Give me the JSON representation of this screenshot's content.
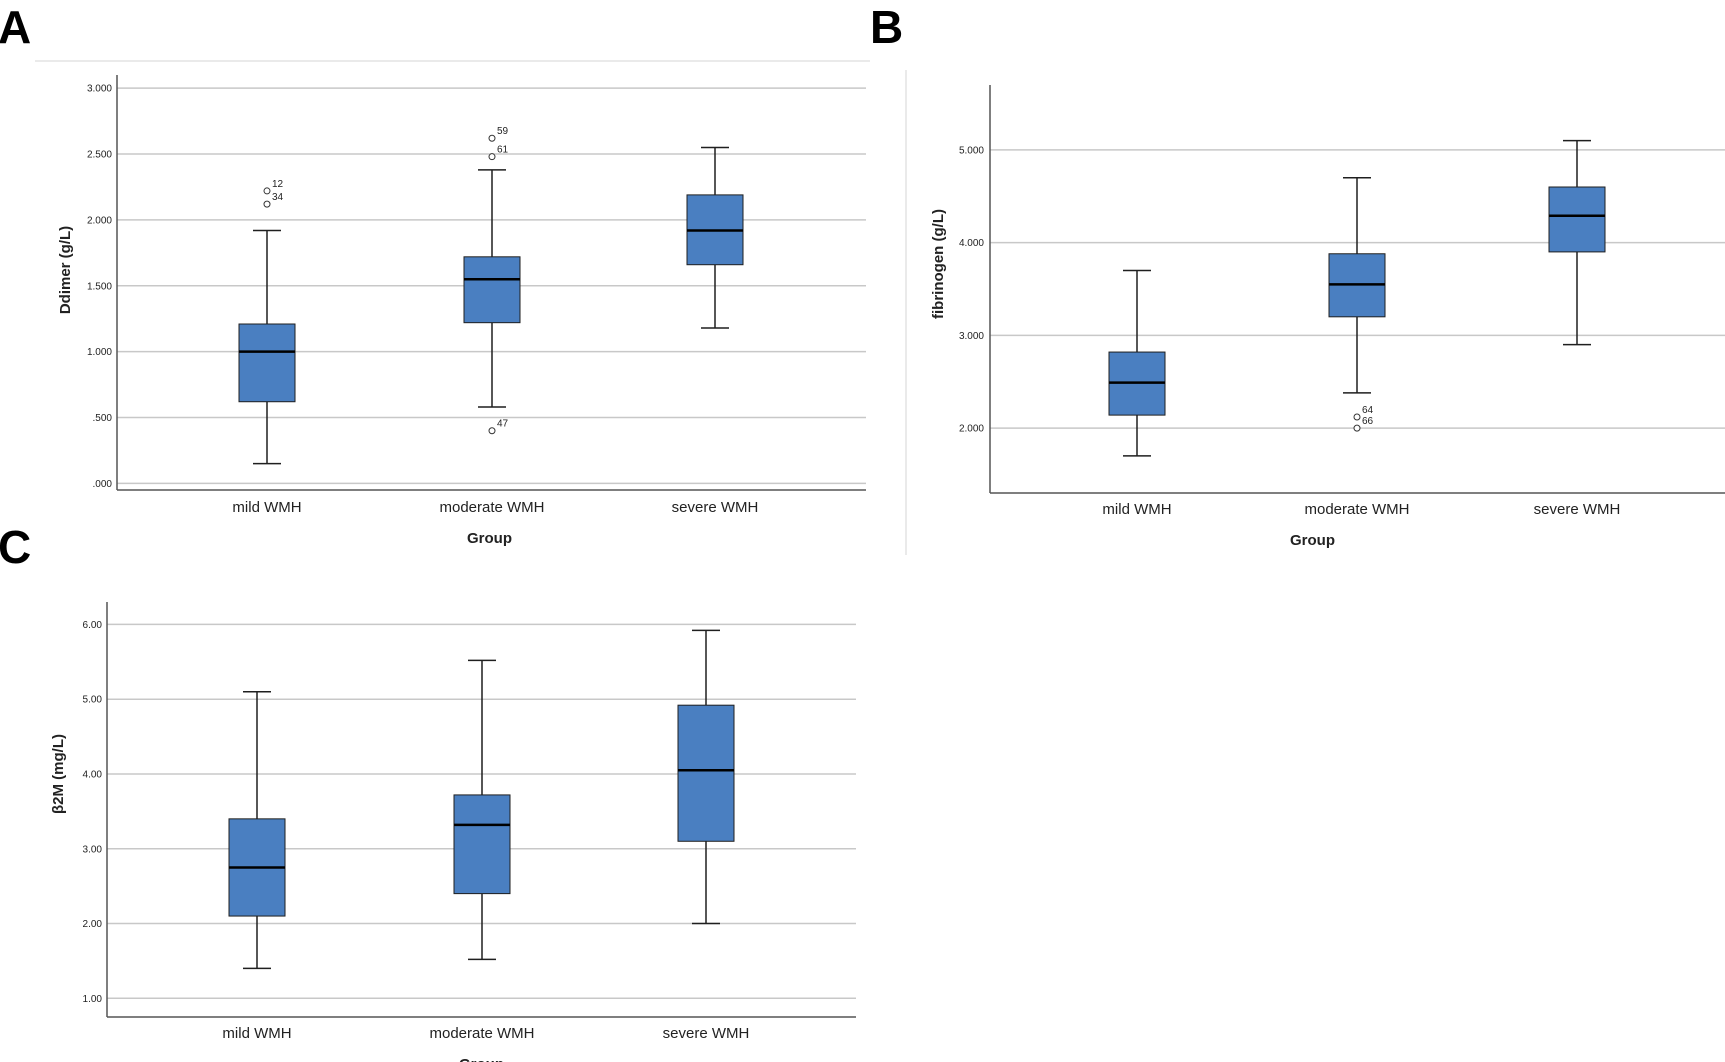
{
  "colors": {
    "box_fill": "#4a7fc1",
    "median": "#000000",
    "grid": "#c8c8c8"
  },
  "chart_data": [
    {
      "panel": "A",
      "type": "boxplot",
      "xlabel": "Group",
      "ylabel": "Ddimer (g/L)",
      "categories": [
        "mild WMH",
        "moderate WMH",
        "severe WMH"
      ],
      "ylim": [
        -0.05,
        3.1
      ],
      "yticks": [
        0,
        0.5,
        1.0,
        1.5,
        2.0,
        2.5,
        3.0
      ],
      "ytick_labels": [
        ".000",
        ".500",
        "1.000",
        "1.500",
        "2.000",
        "2.500",
        "3.000"
      ],
      "grid": true,
      "boxes": [
        {
          "category": "mild WMH",
          "whisker_low": 0.15,
          "q1": 0.62,
          "median": 1.0,
          "q3": 1.21,
          "whisker_high": 1.92,
          "outliers": [
            {
              "value": 2.12,
              "label": "34"
            },
            {
              "value": 2.22,
              "label": "12"
            }
          ]
        },
        {
          "category": "moderate WMH",
          "whisker_low": 0.58,
          "q1": 1.22,
          "median": 1.55,
          "q3": 1.72,
          "whisker_high": 2.38,
          "outliers": [
            {
              "value": 0.4,
              "label": "47"
            },
            {
              "value": 2.48,
              "label": "61"
            },
            {
              "value": 2.62,
              "label": "59"
            }
          ]
        },
        {
          "category": "severe WMH",
          "whisker_low": 1.18,
          "q1": 1.66,
          "median": 1.92,
          "q3": 2.19,
          "whisker_high": 2.55,
          "outliers": []
        }
      ]
    },
    {
      "panel": "B",
      "type": "boxplot",
      "xlabel": "Group",
      "ylabel": "fibrinogen (g/L)",
      "categories": [
        "mild WMH",
        "moderate WMH",
        "severe WMH"
      ],
      "ylim": [
        1.3,
        5.7
      ],
      "yticks": [
        2,
        3,
        4,
        5
      ],
      "ytick_labels": [
        "2.000",
        "3.000",
        "4.000",
        "5.000"
      ],
      "grid": true,
      "boxes": [
        {
          "category": "mild WMH",
          "whisker_low": 1.7,
          "q1": 2.14,
          "median": 2.49,
          "q3": 2.82,
          "whisker_high": 3.7,
          "outliers": []
        },
        {
          "category": "moderate WMH",
          "whisker_low": 2.38,
          "q1": 3.2,
          "median": 3.55,
          "q3": 3.88,
          "whisker_high": 4.7,
          "outliers": [
            {
              "value": 2.0,
              "label": "66"
            },
            {
              "value": 2.12,
              "label": "64"
            }
          ]
        },
        {
          "category": "severe WMH",
          "whisker_low": 2.9,
          "q1": 3.9,
          "median": 4.29,
          "q3": 4.6,
          "whisker_high": 5.1,
          "outliers": []
        }
      ]
    },
    {
      "panel": "C",
      "type": "boxplot",
      "xlabel": "Group",
      "ylabel": "β2M (mg/L)",
      "categories": [
        "mild WMH",
        "moderate WMH",
        "severe WMH"
      ],
      "ylim": [
        0.75,
        6.3
      ],
      "yticks": [
        1,
        2,
        3,
        4,
        5,
        6
      ],
      "ytick_labels": [
        "1.00",
        "2.00",
        "3.00",
        "4.00",
        "5.00",
        "6.00"
      ],
      "grid": true,
      "boxes": [
        {
          "category": "mild WMH",
          "whisker_low": 1.4,
          "q1": 2.1,
          "median": 2.75,
          "q3": 3.4,
          "whisker_high": 5.1,
          "outliers": []
        },
        {
          "category": "moderate WMH",
          "whisker_low": 1.52,
          "q1": 2.4,
          "median": 3.32,
          "q3": 3.72,
          "whisker_high": 5.52,
          "outliers": []
        },
        {
          "category": "severe WMH",
          "whisker_low": 2.0,
          "q1": 3.1,
          "median": 4.05,
          "q3": 4.92,
          "whisker_high": 5.92,
          "outliers": []
        }
      ]
    }
  ]
}
